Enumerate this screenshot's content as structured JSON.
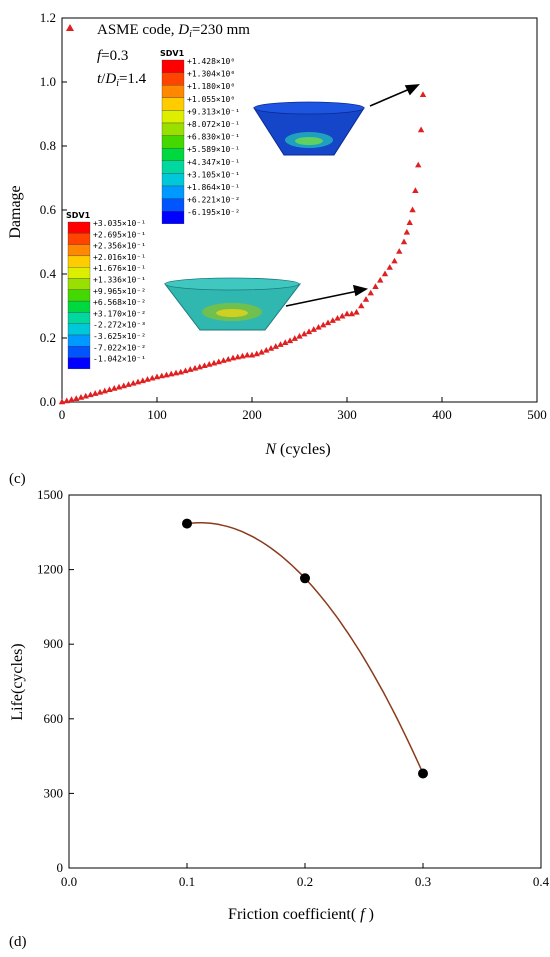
{
  "chart_data": [
    {
      "type": "scatter",
      "panel_label": "(c)",
      "xlabel": "N (cycles)",
      "ylabel": "Damage",
      "xlim": [
        0,
        500
      ],
      "ylim": [
        0,
        1.2
      ],
      "xticks": [
        "0",
        "100",
        "200",
        "300",
        "400",
        "500"
      ],
      "yticks": [
        "0.0",
        "0.2",
        "0.4",
        "0.6",
        "0.8",
        "1.0",
        "1.2"
      ],
      "legend": {
        "label": "ASME code, Di=230 mm",
        "marker": "triangle",
        "color": "#e02020"
      },
      "annotations": [
        "f=0.3",
        "t/Di=1.4"
      ],
      "series": [
        {
          "name": "ASME code, Di=230 mm",
          "x": [
            0,
            5,
            10,
            15,
            20,
            25,
            30,
            35,
            40,
            45,
            50,
            55,
            60,
            65,
            70,
            75,
            80,
            85,
            90,
            95,
            100,
            105,
            110,
            115,
            120,
            125,
            130,
            135,
            140,
            145,
            150,
            155,
            160,
            165,
            170,
            175,
            180,
            185,
            190,
            195,
            200,
            205,
            210,
            215,
            220,
            225,
            230,
            235,
            240,
            245,
            250,
            255,
            260,
            265,
            270,
            275,
            280,
            285,
            290,
            295,
            300,
            305,
            310,
            315,
            320,
            325,
            330,
            335,
            340,
            345,
            350,
            355,
            360,
            363,
            366,
            369,
            372,
            375,
            378,
            380
          ],
          "y": [
            0.0,
            0.003,
            0.007,
            0.01,
            0.014,
            0.018,
            0.022,
            0.026,
            0.03,
            0.034,
            0.038,
            0.042,
            0.046,
            0.05,
            0.054,
            0.058,
            0.062,
            0.066,
            0.07,
            0.074,
            0.078,
            0.081,
            0.084,
            0.087,
            0.09,
            0.093,
            0.097,
            0.101,
            0.105,
            0.109,
            0.113,
            0.117,
            0.121,
            0.125,
            0.129,
            0.133,
            0.137,
            0.14,
            0.143,
            0.146,
            0.146,
            0.15,
            0.155,
            0.161,
            0.167,
            0.173,
            0.179,
            0.185,
            0.191,
            0.198,
            0.205,
            0.212,
            0.219,
            0.226,
            0.233,
            0.24,
            0.247,
            0.254,
            0.261,
            0.268,
            0.275,
            0.275,
            0.28,
            0.3,
            0.32,
            0.34,
            0.36,
            0.38,
            0.4,
            0.42,
            0.44,
            0.47,
            0.5,
            0.53,
            0.56,
            0.6,
            0.66,
            0.74,
            0.85,
            0.96
          ]
        }
      ],
      "colorbar_top": {
        "title": "SDV1",
        "labels": [
          "+1.428×10⁰",
          "+1.304×10⁰",
          "+1.180×10⁰",
          "+1.055×10⁰",
          "+9.313×10⁻¹",
          "+8.072×10⁻¹",
          "+6.830×10⁻¹",
          "+5.589×10⁻¹",
          "+4.347×10⁻¹",
          "+3.105×10⁻¹",
          "+1.864×10⁻¹",
          "+6.221×10⁻²",
          "-6.195×10⁻²"
        ],
        "colors": [
          "#ff0000",
          "#ff4400",
          "#ff8800",
          "#ffcc00",
          "#ddee00",
          "#99e000",
          "#44d800",
          "#00d840",
          "#00d8a0",
          "#00c8d8",
          "#0099ff",
          "#0055ff",
          "#0000ff"
        ]
      },
      "colorbar_bottom": {
        "title": "SDV1",
        "labels": [
          "+3.035×10⁻¹",
          "+2.695×10⁻¹",
          "+2.356×10⁻¹",
          "+2.016×10⁻¹",
          "+1.676×10⁻¹",
          "+1.336×10⁻¹",
          "+9.965×10⁻²",
          "+6.568×10⁻²",
          "+3.170×10⁻²",
          "-2.272×10⁻³",
          "-3.625×10⁻²",
          "-7.022×10⁻²",
          "-1.042×10⁻¹"
        ],
        "colors": [
          "#ff0000",
          "#ff4400",
          "#ff8800",
          "#ffcc00",
          "#ddee00",
          "#99e000",
          "#44d800",
          "#00d840",
          "#00d8a0",
          "#00c8d8",
          "#0099ff",
          "#0055ff",
          "#0000ff"
        ]
      }
    },
    {
      "type": "line",
      "panel_label": "(d)",
      "xlabel": "Friction coefficient( f )",
      "ylabel": "Life(cycles)",
      "xlim": [
        0.0,
        0.4
      ],
      "ylim": [
        0,
        1500
      ],
      "xticks": [
        "0.0",
        "0.1",
        "0.2",
        "0.3",
        "0.4"
      ],
      "yticks": [
        "0",
        "300",
        "600",
        "900",
        "1200",
        "1500"
      ],
      "series": [
        {
          "x": [
            0.1,
            0.2,
            0.3
          ],
          "y": [
            1385,
            1165,
            380
          ],
          "marker": "circle",
          "line_color": "#8b3a1a",
          "marker_color": "#000000"
        }
      ]
    }
  ]
}
